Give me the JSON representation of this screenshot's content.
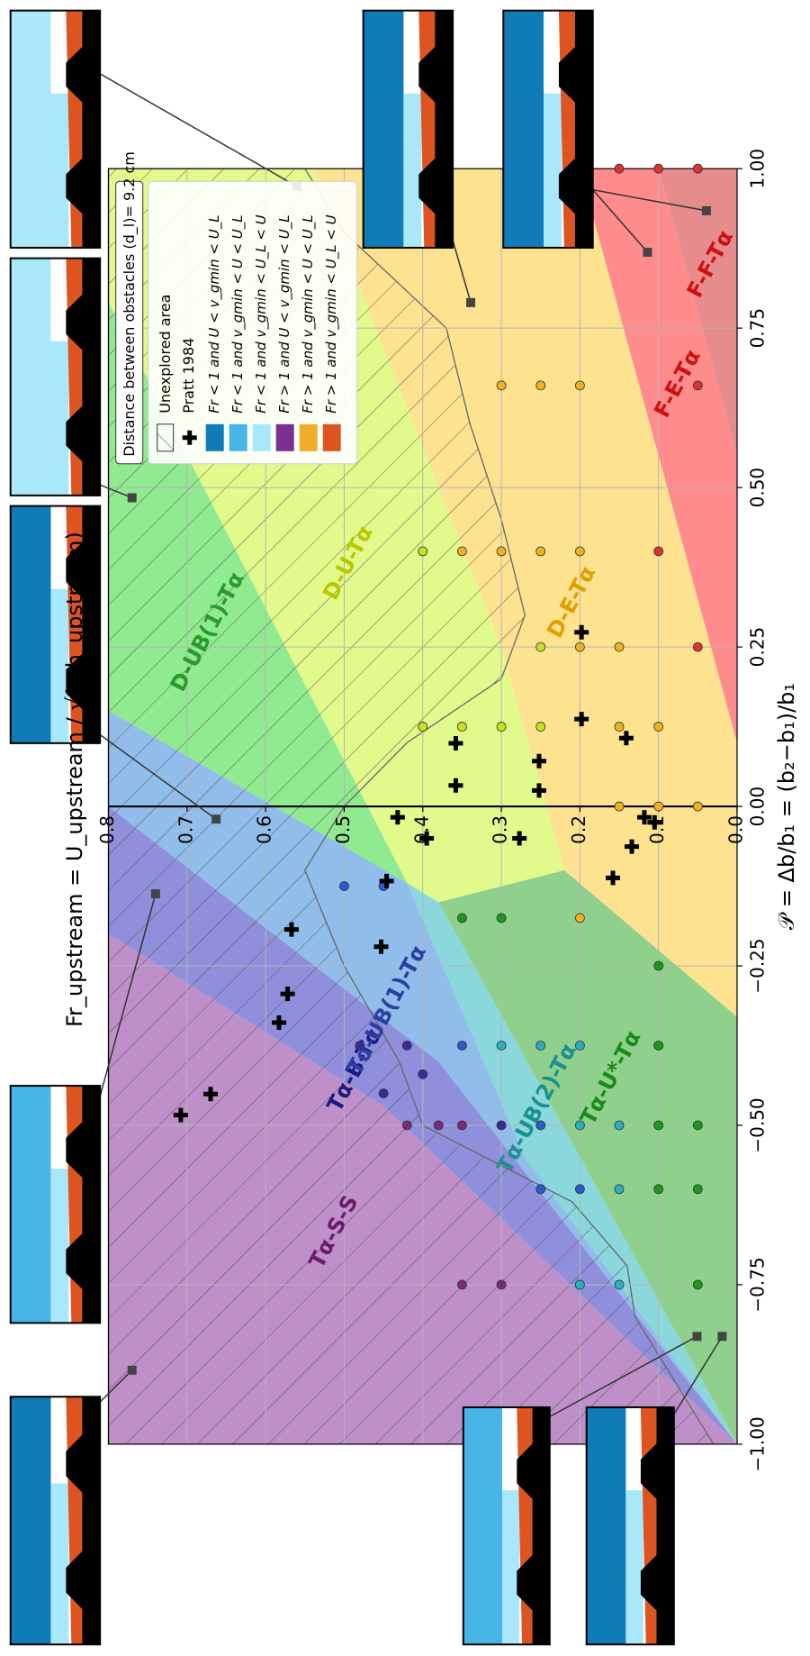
{
  "chart_data": {
    "type": "scatter",
    "title": "Fr_upstream = U_upstream / √(g h_upstream)",
    "x_label": "𝒫 = Δb/b₁ = (b₂−b₁)/b₁",
    "annotation": "Distance between obstacles (d_l)= 9.2 cm",
    "xlim": [
      -1,
      1
    ],
    "xticks": [
      {
        "value": -1,
        "label": "−1.00"
      },
      {
        "value": -0.75,
        "label": "−0.75"
      },
      {
        "value": -0.5,
        "label": "−0.50"
      },
      {
        "value": -0.25,
        "label": "−0.25"
      },
      {
        "value": 0,
        "label": "0.00"
      },
      {
        "value": 0.25,
        "label": "0.25"
      },
      {
        "value": 0.5,
        "label": "0.50"
      },
      {
        "value": 0.75,
        "label": "0.75"
      },
      {
        "value": 1,
        "label": "1.00"
      }
    ],
    "ylim": [
      0,
      0.8
    ],
    "yticks": [
      {
        "value": 0,
        "label": "0.0"
      },
      0.1,
      0.2,
      0.3,
      0.4,
      0.5,
      0.6,
      0.7,
      0.8
    ],
    "grid": true,
    "regions": [
      {
        "label": "Tα-S-S",
        "color": "#bf8fc9",
        "label_color": "#6a1a6a",
        "x": [
          -1,
          -1,
          -0.2,
          -0.47
        ],
        "y": [
          0,
          0.8,
          0.8,
          0.45
        ]
      },
      {
        "label": "Tα-B-Tα",
        "color": "#8f8fdc",
        "label_color": "#1a1a80",
        "x": [
          -1,
          -0.47,
          -0.2,
          0,
          -0.4
        ],
        "y": [
          0,
          0.45,
          0.8,
          0.8,
          0.38
        ]
      },
      {
        "label": "Tα-UB(1)-Tα",
        "color": "#90bdea",
        "label_color": "#2a3fa0",
        "x": [
          -1,
          -0.4,
          0,
          0.15,
          -0.12,
          -0.55
        ],
        "y": [
          0,
          0.38,
          0.8,
          0.8,
          0.42,
          0.27
        ]
      },
      {
        "label": "Tα-UB(2)-Tα",
        "color": "#8ad8dc",
        "label_color": "#1a9090",
        "x": [
          -1,
          -0.55,
          -0.12,
          -0.15,
          -0.55
        ],
        "y": [
          0,
          0.27,
          0.42,
          0.38,
          0.2
        ]
      },
      {
        "label": "Tα-U*-Tα",
        "color": "#8fd08c",
        "label_color": "#1a8a1a",
        "x": [
          -1,
          -0.55,
          -0.15,
          -0.1,
          -0.33
        ],
        "y": [
          0,
          0.2,
          0.38,
          0.22,
          0
        ]
      },
      {
        "label": "D-UB(1)-Tα",
        "color": "#90ea90",
        "label_color": "#2a9a2a",
        "x": [
          0.15,
          0.79,
          -0.12
        ],
        "y": [
          0.8,
          0.8,
          0.42
        ]
      },
      {
        "label": "D-U-Tα",
        "color": "#e2fa8c",
        "label_color": "#b8c800",
        "x": [
          0.79,
          1,
          1,
          0.25,
          -0.1,
          -0.15,
          -0.12
        ],
        "y": [
          0.8,
          0.8,
          0.54,
          0.3,
          0.22,
          0.38,
          0.42
        ]
      },
      {
        "label": "D-E-Tα",
        "color": "#fde290",
        "label_color": "#e0a000",
        "x": [
          1,
          1,
          0.1,
          -0.33,
          -0.1,
          0.25
        ],
        "y": [
          0.54,
          0.2,
          0,
          0,
          0.22,
          0.3
        ]
      },
      {
        "label": "F-E-Tα",
        "color": "#ff8c8c",
        "label_color": "#d01010",
        "x": [
          0.1,
          1,
          1,
          0.55
        ],
        "y": [
          0,
          0.2,
          0.1,
          0
        ]
      },
      {
        "label": "F-F-Tα",
        "color": "#e68c8c",
        "label_color": "#d01010",
        "x": [
          0.55,
          1,
          1
        ],
        "y": [
          0,
          0,
          0.1
        ]
      }
    ],
    "unexplored": {
      "name": "Unexplored area",
      "x": [
        -1,
        -0.8,
        -0.72,
        -0.62,
        -0.5,
        -0.4,
        -0.25,
        -0.1,
        0,
        0.1,
        0.2,
        0.3,
        0.45,
        0.6,
        0.75,
        0.9,
        1,
        1,
        -1
      ],
      "y": [
        0.03,
        0.13,
        0.14,
        0.21,
        0.4,
        0.43,
        0.5,
        0.55,
        0.5,
        0.42,
        0.3,
        0.27,
        0.3,
        0.34,
        0.37,
        0.5,
        0.55,
        0.8,
        0.8
      ]
    },
    "pratt": {
      "name": "Pratt 1984",
      "x": [
        -0.484,
        -0.451,
        -0.339,
        -0.294,
        -0.193,
        -0.22,
        -0.117,
        -0.017,
        -0.05,
        0.033,
        0.099,
        -0.05,
        0.025,
        0.071,
        0.137,
        0.107,
        -0.063,
        -0.017,
        -0.025,
        -0.112,
        0.273
      ],
      "y": [
        0.708,
        0.67,
        0.583,
        0.572,
        0.567,
        0.453,
        0.446,
        0.432,
        0.395,
        0.358,
        0.358,
        0.277,
        0.252,
        0.252,
        0.198,
        0.141,
        0.134,
        0.118,
        0.105,
        0.158,
        0.198
      ]
    },
    "points": {
      "x": [
        -0.75,
        -0.75,
        -0.75,
        -0.75,
        -0.75,
        -0.6,
        -0.6,
        -0.6,
        -0.6,
        -0.6,
        -0.5,
        -0.5,
        -0.5,
        -0.5,
        -0.5,
        -0.5,
        -0.5,
        -0.5,
        -0.5,
        -0.45,
        -0.42,
        -0.375,
        -0.375,
        -0.375,
        -0.375,
        -0.375,
        -0.375,
        -0.375,
        -0.25,
        -0.175,
        -0.175,
        -0.175,
        -0.125,
        -0.125,
        0,
        0,
        0,
        0.125,
        0.125,
        0.125,
        0.125,
        0.125,
        0.125,
        0.25,
        0.25,
        0.25,
        0.25,
        0.4,
        0.4,
        0.4,
        0.4,
        0.4,
        0.4,
        0.66,
        0.66,
        0.66,
        0.66,
        1,
        1,
        1
      ],
      "y": [
        0.35,
        0.3,
        0.2,
        0.15,
        0.05,
        0.25,
        0.2,
        0.15,
        0.1,
        0.05,
        0.42,
        0.38,
        0.35,
        0.3,
        0.25,
        0.2,
        0.15,
        0.1,
        0.05,
        0.45,
        0.4,
        0.48,
        0.42,
        0.35,
        0.3,
        0.25,
        0.2,
        0.1,
        0.1,
        0.35,
        0.3,
        0.2,
        0.5,
        0.45,
        0.15,
        0.1,
        0.05,
        0.4,
        0.35,
        0.3,
        0.25,
        0.15,
        0.1,
        0.25,
        0.2,
        0.15,
        0.05,
        0.4,
        0.35,
        0.3,
        0.25,
        0.2,
        0.1,
        0.3,
        0.25,
        0.2,
        0.05,
        0.15,
        0.1,
        0.05
      ],
      "colors": [
        "#7a2a7a",
        "#7a2a7a",
        "#2ab0c0",
        "#2ab0c0",
        "#1a9a1a",
        "#2a5ad0",
        "#2a5ad0",
        "#2ab0c0",
        "#1a9a1a",
        "#1a9a1a",
        "#7a2a7a",
        "#7a2a7a",
        "#7a2a7a",
        "#3a2a9a",
        "#2a5ad0",
        "#2ab0c0",
        "#2ab0c0",
        "#1a9a1a",
        "#1a9a1a",
        "#3a2a9a",
        "#3a2a9a",
        "#3a2a9a",
        "#3a2a9a",
        "#2a5ad0",
        "#2ab0c0",
        "#2ab0c0",
        "#2ab0c0",
        "#1a9a1a",
        "#1a9a1a",
        "#1a9a1a",
        "#1a9a1a",
        "#f0b020",
        "#2a5ad0",
        "#2a5ad0",
        "#f0b020",
        "#f0b020",
        "#f0b020",
        "#c8e020",
        "#c8e020",
        "#c8e020",
        "#c8e020",
        "#f0b020",
        "#f0b020",
        "#c8e020",
        "#f0b020",
        "#f0b020",
        "#e03030",
        "#c8e020",
        "#f0b020",
        "#f0b020",
        "#f0b020",
        "#f0b020",
        "#e03030",
        "#f0b020",
        "#f0b020",
        "#f0b020",
        "#e03030",
        "#e03030",
        "#e03030",
        "#e03030"
      ]
    },
    "snapshots": {
      "x": [
        0.972,
        0.484,
        0.79,
        0.869,
        0.934,
        -0.02,
        -0.137,
        -0.884,
        -0.831,
        -0.831
      ],
      "y": [
        0.56,
        0.77,
        0.339,
        0.114,
        0.039,
        0.663,
        0.74,
        0.77,
        0.051,
        0.019
      ]
    },
    "legend": [
      {
        "name": "Fr < 1 and U < v_gmin < U_L",
        "color": "#0f7cb8"
      },
      {
        "name": "Fr < 1 and v_gmin < U < U_L",
        "color": "#47b5e6"
      },
      {
        "name": "Fr < 1 and v_gmin < U_L < U",
        "color": "#a8e8fa"
      },
      {
        "name": "Fr > 1 and U < v_gmin < U_L",
        "color": "#7b2f8e"
      },
      {
        "name": "Fr > 1 and v_gmin < U < U_L",
        "color": "#f0ad2a"
      },
      {
        "name": "Fr > 1 and v_gmin < U_L < U",
        "color": "#de5420"
      }
    ]
  }
}
